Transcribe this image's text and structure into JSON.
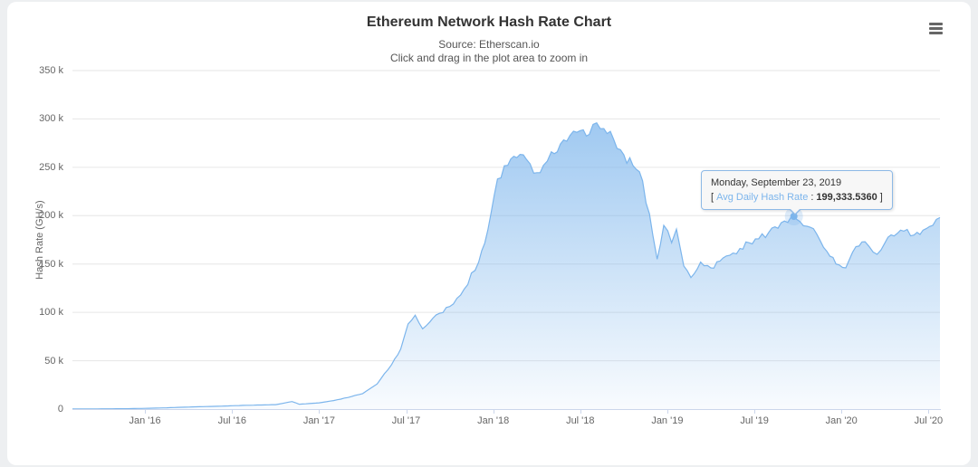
{
  "tooltip": {
    "date": "Monday, September 23, 2019",
    "bracket_open": "[",
    "label": "Avg Daily Hash Rate",
    "colon": ":",
    "value": "199,333.5360",
    "bracket_close": "]"
  },
  "icons": {
    "menu": "hamburger"
  },
  "chart_data": {
    "type": "area",
    "title": "Ethereum Network Hash Rate Chart",
    "subtitle": [
      "Source: Etherscan.io",
      "Click and drag in the plot area to zoom in"
    ],
    "xlabel": "",
    "ylabel": "Hash Rate (GH/s)",
    "legend": "none",
    "grid": "horizontal",
    "ylim": [
      0,
      350000
    ],
    "yticks": [
      {
        "value": 0,
        "label": "0"
      },
      {
        "value": 50000,
        "label": "50 k"
      },
      {
        "value": 100000,
        "label": "100 k"
      },
      {
        "value": 150000,
        "label": "150 k"
      },
      {
        "value": 200000,
        "label": "200 k"
      },
      {
        "value": 250000,
        "label": "250 k"
      },
      {
        "value": 300000,
        "label": "300 k"
      },
      {
        "value": 350000,
        "label": "350 k"
      }
    ],
    "xticks": [
      {
        "label": "Jan '16",
        "date": "2016-01-01"
      },
      {
        "label": "Jul '16",
        "date": "2016-07-01"
      },
      {
        "label": "Jan '17",
        "date": "2017-01-01"
      },
      {
        "label": "Jul '17",
        "date": "2017-07-01"
      },
      {
        "label": "Jan '18",
        "date": "2018-01-01"
      },
      {
        "label": "Jul '18",
        "date": "2018-07-01"
      },
      {
        "label": "Jan '19",
        "date": "2019-01-01"
      },
      {
        "label": "Jul '19",
        "date": "2019-07-01"
      },
      {
        "label": "Jan '20",
        "date": "2020-01-01"
      },
      {
        "label": "Jul '20",
        "date": "2020-07-01"
      }
    ],
    "colors": {
      "line": "#7cb5ec",
      "fill_top": "rgba(124,181,236,0.85)",
      "fill_bottom": "rgba(124,181,236,0.05)",
      "grid": "#e6e6e6",
      "axis": "#ccd6eb",
      "label_text": "#666666",
      "title_text": "#333333",
      "tooltip_border": "#8db9e6"
    },
    "highlight_point": {
      "date": "2019-09-23",
      "value": 199333.536
    },
    "series": [
      {
        "name": "Avg Daily Hash Rate",
        "unit": "GH/s",
        "points": [
          [
            "2015-08-01",
            80
          ],
          [
            "2015-10-01",
            250
          ],
          [
            "2015-12-01",
            450
          ],
          [
            "2016-02-01",
            1100
          ],
          [
            "2016-04-01",
            2100
          ],
          [
            "2016-06-01",
            2900
          ],
          [
            "2016-08-01",
            3900
          ],
          [
            "2016-10-01",
            4600
          ],
          [
            "2016-11-05",
            7800
          ],
          [
            "2016-11-20",
            5000
          ],
          [
            "2017-01-01",
            6500
          ],
          [
            "2017-02-01",
            8800
          ],
          [
            "2017-03-01",
            12000
          ],
          [
            "2017-04-01",
            16000
          ],
          [
            "2017-05-01",
            26000
          ],
          [
            "2017-06-01",
            46000
          ],
          [
            "2017-06-20",
            62000
          ],
          [
            "2017-07-05",
            88000
          ],
          [
            "2017-07-20",
            97000
          ],
          [
            "2017-08-05",
            83000
          ],
          [
            "2017-08-20",
            90000
          ],
          [
            "2017-09-10",
            99000
          ],
          [
            "2017-10-01",
            106000
          ],
          [
            "2017-11-01",
            124000
          ],
          [
            "2017-12-01",
            152000
          ],
          [
            "2017-12-20",
            185000
          ],
          [
            "2018-01-10",
            238000
          ],
          [
            "2018-02-01",
            252000
          ],
          [
            "2018-02-20",
            260000
          ],
          [
            "2018-03-10",
            258000
          ],
          [
            "2018-03-25",
            244000
          ],
          [
            "2018-04-15",
            252000
          ],
          [
            "2018-05-01",
            266000
          ],
          [
            "2018-05-20",
            274000
          ],
          [
            "2018-06-10",
            283000
          ],
          [
            "2018-07-01",
            288000
          ],
          [
            "2018-07-20",
            284000
          ],
          [
            "2018-08-05",
            296000
          ],
          [
            "2018-08-20",
            290000
          ],
          [
            "2018-09-10",
            279000
          ],
          [
            "2018-10-01",
            263000
          ],
          [
            "2018-10-20",
            252000
          ],
          [
            "2018-11-10",
            236000
          ],
          [
            "2018-12-01",
            180000
          ],
          [
            "2018-12-10",
            155000
          ],
          [
            "2018-12-24",
            190000
          ],
          [
            "2019-01-10",
            172000
          ],
          [
            "2019-01-20",
            186000
          ],
          [
            "2019-02-05",
            148000
          ],
          [
            "2019-02-20",
            136000
          ],
          [
            "2019-03-10",
            152000
          ],
          [
            "2019-04-01",
            146000
          ],
          [
            "2019-04-20",
            153000
          ],
          [
            "2019-05-10",
            159000
          ],
          [
            "2019-06-01",
            166000
          ],
          [
            "2019-06-20",
            172000
          ],
          [
            "2019-07-10",
            176000
          ],
          [
            "2019-08-01",
            183000
          ],
          [
            "2019-08-20",
            187000
          ],
          [
            "2019-09-10",
            193000
          ],
          [
            "2019-09-23",
            199333.536
          ],
          [
            "2019-10-05",
            194000
          ],
          [
            "2019-10-20",
            189000
          ],
          [
            "2019-11-10",
            181000
          ],
          [
            "2019-12-01",
            163000
          ],
          [
            "2019-12-20",
            150000
          ],
          [
            "2020-01-10",
            146000
          ],
          [
            "2020-02-01",
            168000
          ],
          [
            "2020-02-20",
            173000
          ],
          [
            "2020-03-15",
            160000
          ],
          [
            "2020-04-01",
            172000
          ],
          [
            "2020-04-20",
            179000
          ],
          [
            "2020-05-10",
            184000
          ],
          [
            "2020-06-01",
            180000
          ],
          [
            "2020-06-20",
            185000
          ],
          [
            "2020-07-10",
            190000
          ],
          [
            "2020-07-25",
            198000
          ]
        ]
      }
    ]
  }
}
